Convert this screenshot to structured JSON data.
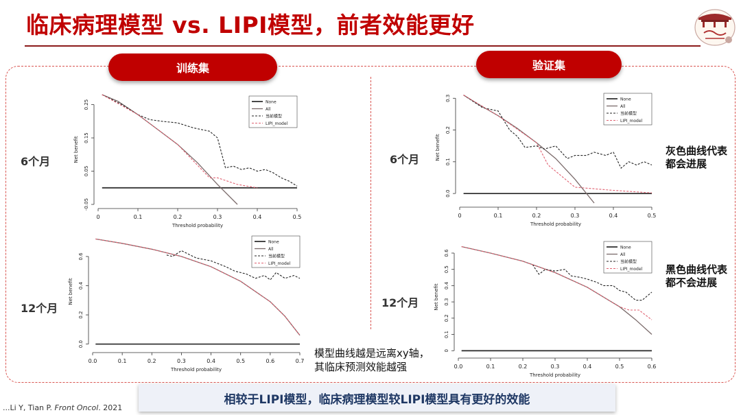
{
  "slide": {
    "title": "临床病理模型 vs. LIPI模型，前者效能更好",
    "train_label": "训练集",
    "valid_label": "验证集",
    "row_label_6": "6个月",
    "row_label_12": "12个月",
    "note_gray_line1": "灰色曲线代表",
    "note_gray_line2": "都会进展",
    "note_black_line1": "黑色曲线代表",
    "note_black_line2": "都不会进展",
    "note_model_line1": "模型曲线越是远离xy轴，",
    "note_model_line2": "其临床预测效能越强",
    "conclusion": "相较于LIPI模型，临床病理模型较LIPI模型具有更好的效能",
    "citation_authors": "...Li Y, Tian P. ",
    "citation_journal": "Front Oncol",
    "citation_year": ". 2021",
    "colors": {
      "accent": "#c00000",
      "conclusion_text": "#1f3864",
      "frame": "#d9534f"
    }
  },
  "chart_data": [
    {
      "id": "train6",
      "type": "line",
      "xlabel": "Threshold probability",
      "ylabel": "Net benefit",
      "xlim": [
        0,
        0.5
      ],
      "ylim": [
        -0.05,
        0.28
      ],
      "xticks": [
        "0",
        "0.1",
        "0.2",
        "0.3",
        "0.4",
        "0.5"
      ],
      "xtick_values": [
        0,
        0.1,
        0.2,
        0.3,
        0.4,
        0.5
      ],
      "yticks": [
        "-0.05",
        "0.05",
        "0.15",
        "0.25"
      ],
      "ytick_values": [
        -0.05,
        0.05,
        0.15,
        0.25
      ],
      "legend": [
        "None",
        "All",
        "当前模型",
        "LIPI_model"
      ],
      "legend_position": "top-right",
      "series": [
        {
          "name": "None",
          "style": "solid-black",
          "x": [
            0.01,
            0.5
          ],
          "y": [
            0,
            0
          ]
        },
        {
          "name": "All",
          "style": "solid-gray",
          "x": [
            0.01,
            0.05,
            0.1,
            0.15,
            0.2,
            0.25,
            0.3,
            0.35
          ],
          "y": [
            0.29,
            0.26,
            0.22,
            0.175,
            0.13,
            0.075,
            0.01,
            -0.06
          ]
        },
        {
          "name": "当前模型",
          "style": "dashed-black",
          "x": [
            0.01,
            0.06,
            0.1,
            0.13,
            0.16,
            0.2,
            0.24,
            0.26,
            0.28,
            0.3,
            0.32,
            0.34,
            0.36,
            0.38,
            0.4,
            0.42,
            0.44,
            0.46,
            0.48,
            0.5
          ],
          "y": [
            0.29,
            0.25,
            0.22,
            0.205,
            0.2,
            0.195,
            0.18,
            0.175,
            0.17,
            0.15,
            0.06,
            0.065,
            0.055,
            0.06,
            0.05,
            0.055,
            0.045,
            0.03,
            0.02,
            0.005
          ]
        },
        {
          "name": "LIPI_model",
          "style": "dashed-red",
          "x": [
            0.01,
            0.1,
            0.2,
            0.28,
            0.3,
            0.35,
            0.4
          ],
          "y": [
            0.29,
            0.22,
            0.13,
            0.03,
            0.03,
            0.01,
            0.0
          ]
        }
      ]
    },
    {
      "id": "valid6",
      "type": "line",
      "xlabel": "Threshold probability",
      "ylabel": "Net benefit",
      "xlim": [
        0,
        0.5
      ],
      "ylim": [
        -0.03,
        0.32
      ],
      "xticks": [
        "0",
        "0.1",
        "0.2",
        "0.3",
        "0.4",
        "0.5"
      ],
      "xtick_values": [
        0,
        0.1,
        0.2,
        0.3,
        0.4,
        0.5
      ],
      "yticks": [
        "0.0",
        "0.1",
        "0.2",
        "0.3"
      ],
      "ytick_values": [
        0,
        0.1,
        0.2,
        0.3
      ],
      "legend": [
        "None",
        "All",
        "当前模型",
        "LIPI_model"
      ],
      "legend_position": "top-right",
      "series": [
        {
          "name": "None",
          "style": "solid-black",
          "x": [
            0.01,
            0.5
          ],
          "y": [
            0,
            0
          ]
        },
        {
          "name": "All",
          "style": "solid-gray",
          "x": [
            0.01,
            0.05,
            0.1,
            0.15,
            0.2,
            0.25,
            0.3,
            0.35
          ],
          "y": [
            0.31,
            0.28,
            0.245,
            0.205,
            0.16,
            0.11,
            0.045,
            -0.03
          ]
        },
        {
          "name": "当前模型",
          "style": "dashed-black",
          "x": [
            0.01,
            0.06,
            0.1,
            0.13,
            0.15,
            0.17,
            0.2,
            0.22,
            0.25,
            0.28,
            0.3,
            0.33,
            0.35,
            0.38,
            0.4,
            0.42,
            0.44,
            0.46,
            0.48,
            0.5
          ],
          "y": [
            0.31,
            0.27,
            0.26,
            0.2,
            0.18,
            0.145,
            0.15,
            0.14,
            0.15,
            0.11,
            0.12,
            0.12,
            0.13,
            0.12,
            0.13,
            0.08,
            0.1,
            0.09,
            0.1,
            0.09
          ]
        },
        {
          "name": "LIPI_model",
          "style": "dashed-red",
          "x": [
            0.01,
            0.1,
            0.2,
            0.23,
            0.3,
            0.4,
            0.5
          ],
          "y": [
            0.31,
            0.245,
            0.16,
            0.09,
            0.02,
            0.01,
            0.002
          ]
        }
      ]
    },
    {
      "id": "train12",
      "type": "line",
      "xlabel": "Threshold probability",
      "ylabel": "Net benefit",
      "xlim": [
        0,
        0.7
      ],
      "ylim": [
        -0.03,
        0.75
      ],
      "xticks": [
        "0.0",
        "0.1",
        "0.2",
        "0.3",
        "0.4",
        "0.5",
        "0.6",
        "0.7"
      ],
      "xtick_values": [
        0,
        0.1,
        0.2,
        0.3,
        0.4,
        0.5,
        0.6,
        0.7
      ],
      "yticks": [
        "0.0",
        "0.2",
        "0.4",
        "0.6"
      ],
      "ytick_values": [
        0,
        0.2,
        0.4,
        0.6
      ],
      "legend": [
        "None",
        "All",
        "当前模型",
        "LIPI_model"
      ],
      "legend_position": "top-right",
      "series": [
        {
          "name": "None",
          "style": "solid-black",
          "x": [
            0.01,
            0.7
          ],
          "y": [
            0,
            0
          ]
        },
        {
          "name": "All",
          "style": "solid-gray",
          "x": [
            0.01,
            0.1,
            0.2,
            0.3,
            0.4,
            0.5,
            0.6,
            0.65,
            0.7
          ],
          "y": [
            0.72,
            0.69,
            0.65,
            0.6,
            0.53,
            0.43,
            0.29,
            0.19,
            0.06
          ]
        },
        {
          "name": "当前模型",
          "style": "dashed-black",
          "x": [
            0.25,
            0.27,
            0.3,
            0.35,
            0.4,
            0.45,
            0.48,
            0.52,
            0.55,
            0.58,
            0.6,
            0.62,
            0.65,
            0.68,
            0.7
          ],
          "y": [
            0.61,
            0.6,
            0.64,
            0.59,
            0.57,
            0.53,
            0.5,
            0.48,
            0.45,
            0.47,
            0.44,
            0.49,
            0.45,
            0.47,
            0.45
          ]
        },
        {
          "name": "LIPI_model",
          "style": "dashed-red",
          "x": [
            0.01,
            0.1,
            0.2,
            0.3,
            0.4,
            0.5,
            0.6,
            0.65,
            0.7
          ],
          "y": [
            0.72,
            0.69,
            0.65,
            0.6,
            0.53,
            0.43,
            0.29,
            0.19,
            0.06
          ]
        }
      ]
    },
    {
      "id": "valid12",
      "type": "line",
      "xlabel": "Threshold probability",
      "ylabel": "Net benefit",
      "xlim": [
        0,
        0.6
      ],
      "ylim": [
        -0.02,
        0.68
      ],
      "xticks": [
        "0.0",
        "0.1",
        "0.2",
        "0.3",
        "0.4",
        "0.5",
        "0.6"
      ],
      "xtick_values": [
        0,
        0.1,
        0.2,
        0.3,
        0.4,
        0.5,
        0.6
      ],
      "yticks": [
        "0",
        "0.1",
        "0.2",
        "0.3",
        "0.4",
        "0.5",
        "0.6"
      ],
      "ytick_values": [
        0,
        0.1,
        0.2,
        0.3,
        0.4,
        0.5,
        0.6
      ],
      "legend": [
        "None",
        "All",
        "当前模型",
        "LIPI_model"
      ],
      "legend_position": "top-right",
      "series": [
        {
          "name": "None",
          "style": "solid-black",
          "x": [
            0.01,
            0.6
          ],
          "y": [
            0,
            0
          ]
        },
        {
          "name": "All",
          "style": "solid-gray",
          "x": [
            0.01,
            0.1,
            0.2,
            0.3,
            0.4,
            0.5,
            0.55,
            0.6
          ],
          "y": [
            0.64,
            0.6,
            0.55,
            0.48,
            0.39,
            0.27,
            0.19,
            0.1
          ]
        },
        {
          "name": "当前模型",
          "style": "dashed-black",
          "x": [
            0.23,
            0.25,
            0.27,
            0.3,
            0.33,
            0.35,
            0.38,
            0.4,
            0.43,
            0.45,
            0.48,
            0.5,
            0.52,
            0.55,
            0.57,
            0.6
          ],
          "y": [
            0.53,
            0.47,
            0.5,
            0.49,
            0.5,
            0.46,
            0.45,
            0.44,
            0.42,
            0.4,
            0.4,
            0.37,
            0.36,
            0.31,
            0.31,
            0.36
          ]
        },
        {
          "name": "LIPI_model",
          "style": "dashed-red",
          "x": [
            0.01,
            0.1,
            0.2,
            0.3,
            0.4,
            0.5,
            0.53,
            0.56,
            0.6
          ],
          "y": [
            0.64,
            0.6,
            0.55,
            0.48,
            0.39,
            0.27,
            0.25,
            0.25,
            0.19
          ]
        }
      ]
    }
  ]
}
